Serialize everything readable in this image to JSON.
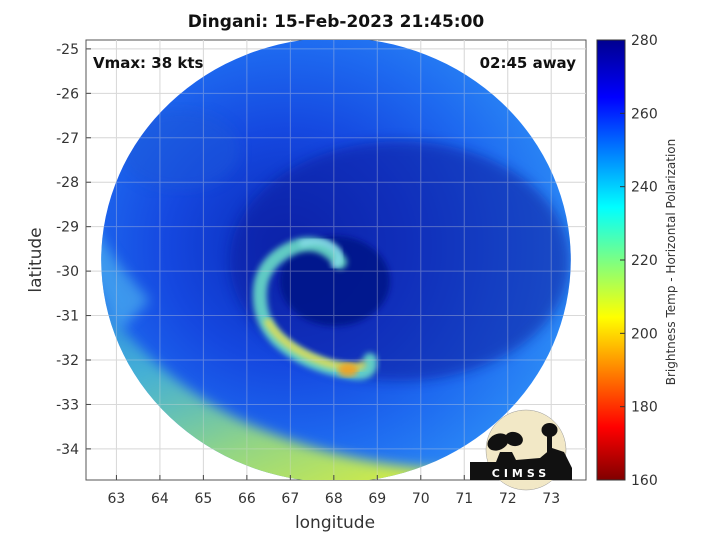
{
  "chart_data": {
    "type": "heatmap",
    "title": "Dingani: 15-Feb-2023 21:45:00",
    "xlabel": "longitude",
    "ylabel": "latitude",
    "xlim": [
      62.3,
      73.8
    ],
    "ylim": [
      -34.7,
      -24.8
    ],
    "x_ticks": [
      "63",
      "64",
      "65",
      "66",
      "67",
      "68",
      "69",
      "70",
      "71",
      "72",
      "73"
    ],
    "y_ticks": [
      "-25",
      "-26",
      "-27",
      "-28",
      "-29",
      "-30",
      "-31",
      "-32",
      "-33",
      "-34"
    ],
    "grid": true,
    "annotations": {
      "vmax": "Vmax: 38 kts",
      "away": "02:45 away"
    },
    "colorbar": {
      "label": "Brightness Temp - Horizontal Polarization",
      "range": [
        160,
        280
      ],
      "ticks": [
        "160",
        "180",
        "200",
        "220",
        "240",
        "260",
        "280"
      ],
      "colormap": "jet"
    },
    "swath_center": [
      68.05,
      -29.75
    ],
    "swath_radius_deg": [
      5.4,
      5.0
    ],
    "storm_center": [
      68.6,
      -30.0
    ]
  },
  "logo": {
    "text": "CIMSS"
  }
}
